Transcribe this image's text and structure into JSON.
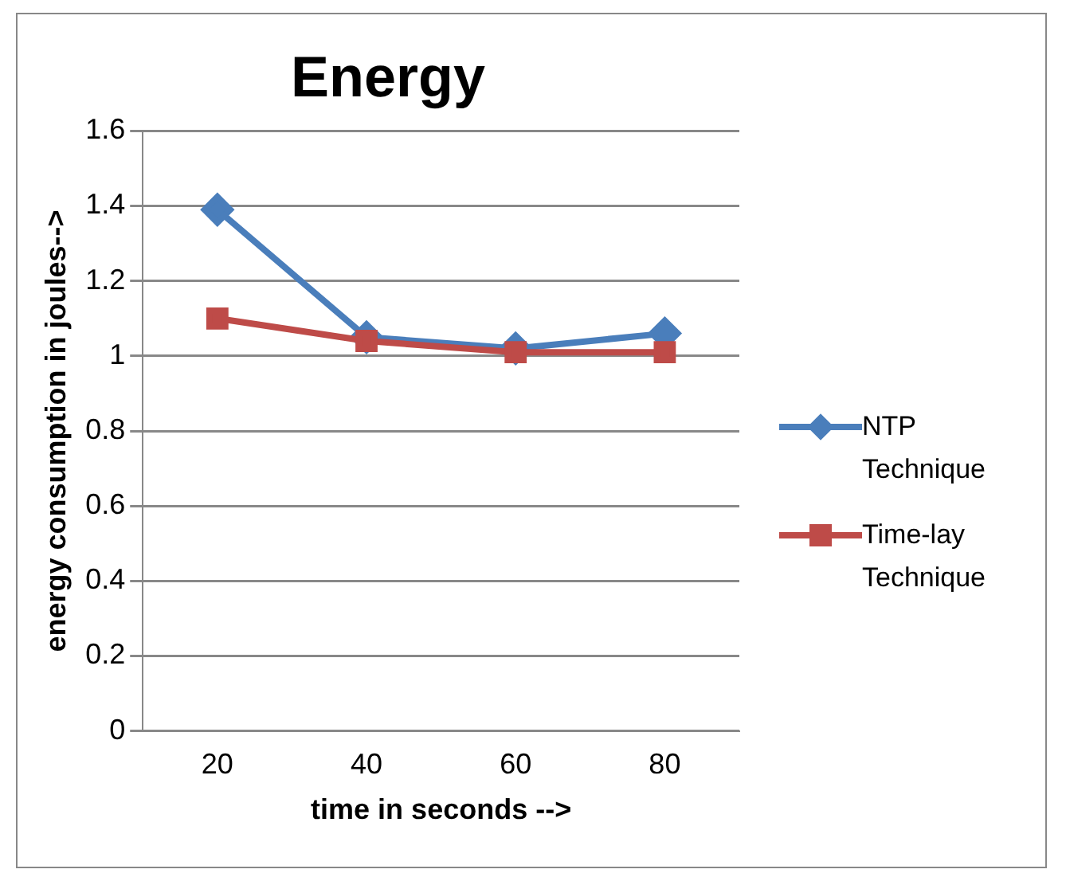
{
  "chart_data": {
    "type": "line",
    "title": "Energy",
    "xlabel": "time in seconds -->",
    "ylabel": "energy consumption in joules-->",
    "categories": [
      "20",
      "40",
      "60",
      "80"
    ],
    "series": [
      {
        "name": "NTP Technique",
        "color": "#4a7ebb",
        "marker": "diamond",
        "values": [
          1.39,
          1.05,
          1.02,
          1.06
        ]
      },
      {
        "name": "Time-lay Technique",
        "color": "#be4b48",
        "marker": "square",
        "values": [
          1.1,
          1.04,
          1.01,
          1.01
        ]
      }
    ],
    "ylim": [
      0,
      1.6
    ],
    "yticks": [
      0,
      0.2,
      0.4,
      0.6,
      0.8,
      1,
      1.2,
      1.4,
      1.6
    ],
    "grid": "y",
    "legend": "right"
  }
}
